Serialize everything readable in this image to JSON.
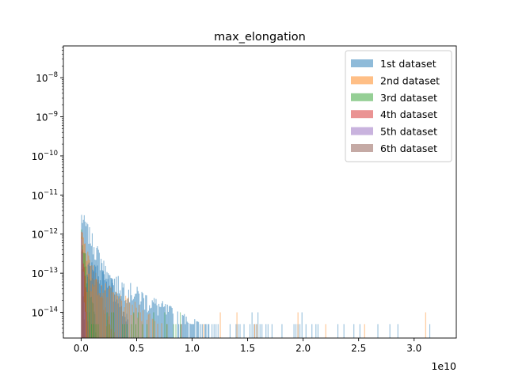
{
  "chart_data": {
    "type": "histogram",
    "title": "max_elongation",
    "xlabel": "",
    "ylabel": "",
    "x_offset_label": "1e10",
    "xlim": [
      -0.16,
      3.38
    ],
    "ylim": [
      2.2e-15,
      6.5e-08
    ],
    "yscale": "log",
    "x_ticks": [
      0.0,
      0.5,
      1.0,
      1.5,
      2.0,
      2.5,
      3.0
    ],
    "x_tick_labels": [
      "0.0",
      "0.5",
      "1.0",
      "1.5",
      "2.0",
      "2.5",
      "3.0"
    ],
    "y_ticks": [
      1e-14,
      1e-13,
      1e-12,
      1e-11,
      1e-10,
      1e-09,
      1e-08
    ],
    "y_tick_bases": [
      "10",
      "10",
      "10",
      "10",
      "10",
      "10",
      "10"
    ],
    "y_tick_exponents": [
      "−14",
      "−13",
      "−12",
      "−11",
      "−10",
      "−9",
      "−8"
    ],
    "grid": false,
    "legend_position": "top-right",
    "series": [
      {
        "name": "1st dataset",
        "color": "#1f77b4"
      },
      {
        "name": "2nd dataset",
        "color": "#ff7f0e"
      },
      {
        "name": "3rd dataset",
        "color": "#2ca02c"
      },
      {
        "name": "4th dataset",
        "color": "#d62728"
      },
      {
        "name": "5th dataset",
        "color": "#9467bd"
      },
      {
        "name": "6th dataset",
        "color": "#8c564b"
      }
    ]
  }
}
